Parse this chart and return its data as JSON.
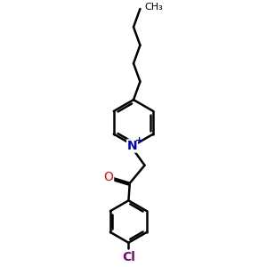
{
  "bg_color": "#ffffff",
  "line_color": "#000000",
  "nitrogen_color": "#0000cd",
  "oxygen_color": "#ff0000",
  "chlorine_color": "#800080",
  "bond_width": 1.8,
  "figsize": [
    3.0,
    3.0
  ],
  "dpi": 100,
  "xlim": [
    0,
    10
  ],
  "ylim": [
    0,
    10
  ]
}
